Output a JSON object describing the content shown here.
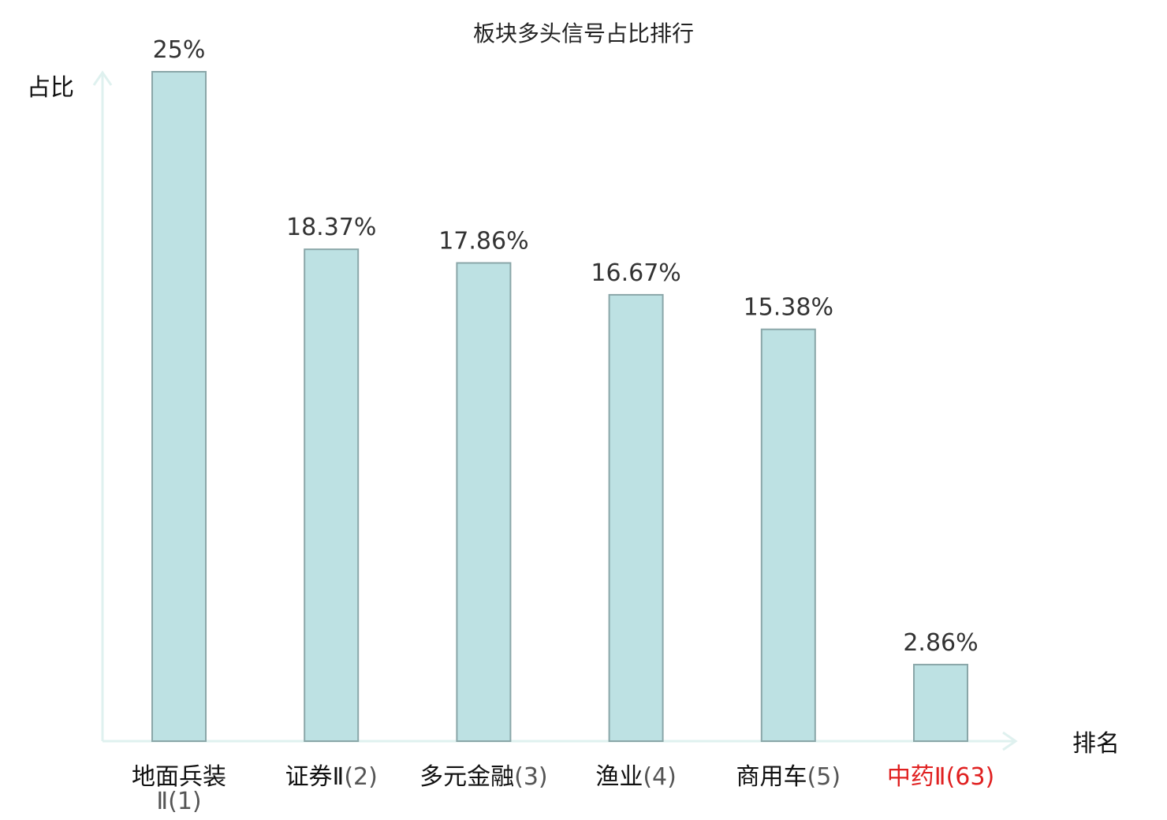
{
  "chart_data": {
    "type": "bar",
    "title": "板块多头信号占比排行",
    "ylabel": "占比",
    "xlabel": "排名",
    "ylim": [
      0,
      25
    ],
    "categories": [
      {
        "name": "地面兵装Ⅱ",
        "rank": "(1)",
        "value": 25,
        "value_label": "25%"
      },
      {
        "name": "证券Ⅱ",
        "rank": "(2)",
        "value": 18.37,
        "value_label": "18.37%"
      },
      {
        "name": "多元金融",
        "rank": "(3)",
        "value": 17.86,
        "value_label": "17.86%"
      },
      {
        "name": "渔业",
        "rank": "(4)",
        "value": 16.67,
        "value_label": "16.67%"
      },
      {
        "name": "商用车",
        "rank": "(5)",
        "value": 15.38,
        "value_label": "15.38%"
      },
      {
        "name": "中药Ⅱ",
        "rank": "(63)",
        "value": 2.86,
        "value_label": "2.86%",
        "highlight": true
      }
    ],
    "colors": {
      "bar_fill": "#bde1e3",
      "bar_stroke": "#8aa6a8",
      "axis": "#dff1ef",
      "highlight_text": "#e02020",
      "normal_text": "#111111"
    }
  }
}
